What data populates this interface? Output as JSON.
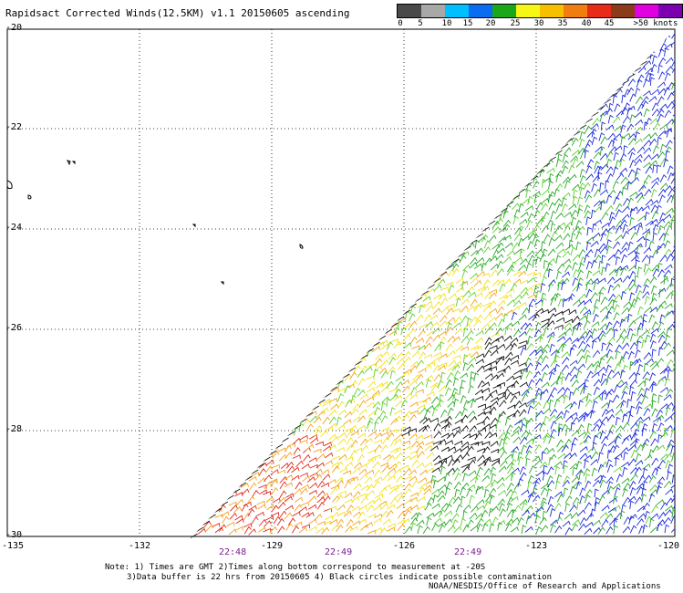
{
  "title": "Rapidsact Corrected Winds(12.5KM) v1.1 20150605 ascending",
  "colorbar": {
    "colors": [
      "#4a4a4a",
      "#a8a8a8",
      "#00bfff",
      "#0a6cf0",
      "#1010d8",
      "#1aa81a",
      "#60e020",
      "#f7f715",
      "#f5c000",
      "#f07d10",
      "#e82a18",
      "#c01818",
      "#8b3a1a",
      "#c08a70",
      "#e000e0",
      "#c000c0",
      "#7a00b0",
      "#3d0078"
    ],
    "labels": [
      "0",
      "5",
      "10",
      "15",
      "20",
      "25",
      "30",
      "35",
      "40",
      "45",
      ">50 knots"
    ]
  },
  "lat_labels": [
    "-20",
    "-22",
    "-24",
    "-26",
    "-28",
    "-30"
  ],
  "lon_labels": [
    "-135",
    "-132",
    "-129",
    "-126",
    "-123",
    "-120"
  ],
  "time_labels": [
    "22:48",
    "22:49",
    "22:49"
  ],
  "note_line1": "Note: 1) Times are GMT 2)Times along bottom correspond to measurement at -20S",
  "note_line2": "3)Data buffer is 22 hrs from 20150605 4) Black circles indicate possible contamination",
  "credit": "NOAA/NESDIS/Office of Research and Applications",
  "map_data": {
    "lat_range": [
      -30,
      -20
    ],
    "lon_range": [
      -135,
      -120
    ],
    "swath": "lower-right wedge of wind barbs; winds strongest (20-30 knots, yellow/orange/red) along the western swath edge near -27 to -30, 15-20 knots (green) over most of the swath, 5-15 knots (blue) in the northeast",
    "islands": [
      "small islands near -135/-23",
      "islets near -134/-22.6",
      "islet near -132/-24",
      "islet near -129/-24.4",
      "islet near -131/-25.1"
    ]
  }
}
